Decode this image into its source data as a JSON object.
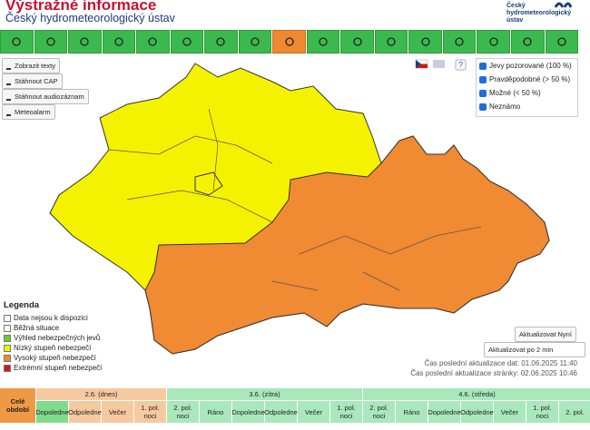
{
  "header": {
    "title": "Výstražné informace",
    "subtitle": "Český hydrometeorologický ústav",
    "logo_lines": [
      "Český",
      "hydrometeorologický",
      "ústav"
    ]
  },
  "buttons": [
    "Zobrazit texty",
    "Stáhnout CAP",
    "Stáhnout audiozáznam",
    "Meteoalarm"
  ],
  "help": "?",
  "filters": [
    "Jevy pozorované (100 %)",
    "Pravděpodobné (> 50 %)",
    "Možné (< 50 %)",
    "Neznámo"
  ],
  "legend": {
    "title": "Legenda",
    "items": [
      "Data nejsou k dispozici",
      "Běžná situace",
      "Výhled nebezpečných jevů",
      "Nízký stupeň nebezpečí",
      "Vysoký stupeň nebezpečí",
      "Extrémní stupeň nebezpečí"
    ]
  },
  "refresh": {
    "button": "Aktualizovat Nyní",
    "select": "Aktualizovat po 2 min",
    "data_time": "Čas poslední aktualizace dat: 01.06.2025 11:40",
    "page_time": "Čas poslední aktualizace stránky: 02.06.2025 10:46"
  },
  "timeline": {
    "all": "Celé období",
    "days": [
      "2.6. (dnes)",
      "3.6. (zítra)",
      "4.6. (středa)"
    ],
    "periods": [
      "Dopoledne",
      "Odpoledne",
      "Večer",
      "1. pol. noci",
      "2. pol. noci",
      "Ráno",
      "Dopoledne",
      "Odpoledne",
      "Večer",
      "1. pol. noci",
      "2. pol. noci",
      "Ráno",
      "Dopoledne",
      "Odpoledne",
      "Večer",
      "1. pol. noci",
      "2. pol."
    ]
  }
}
